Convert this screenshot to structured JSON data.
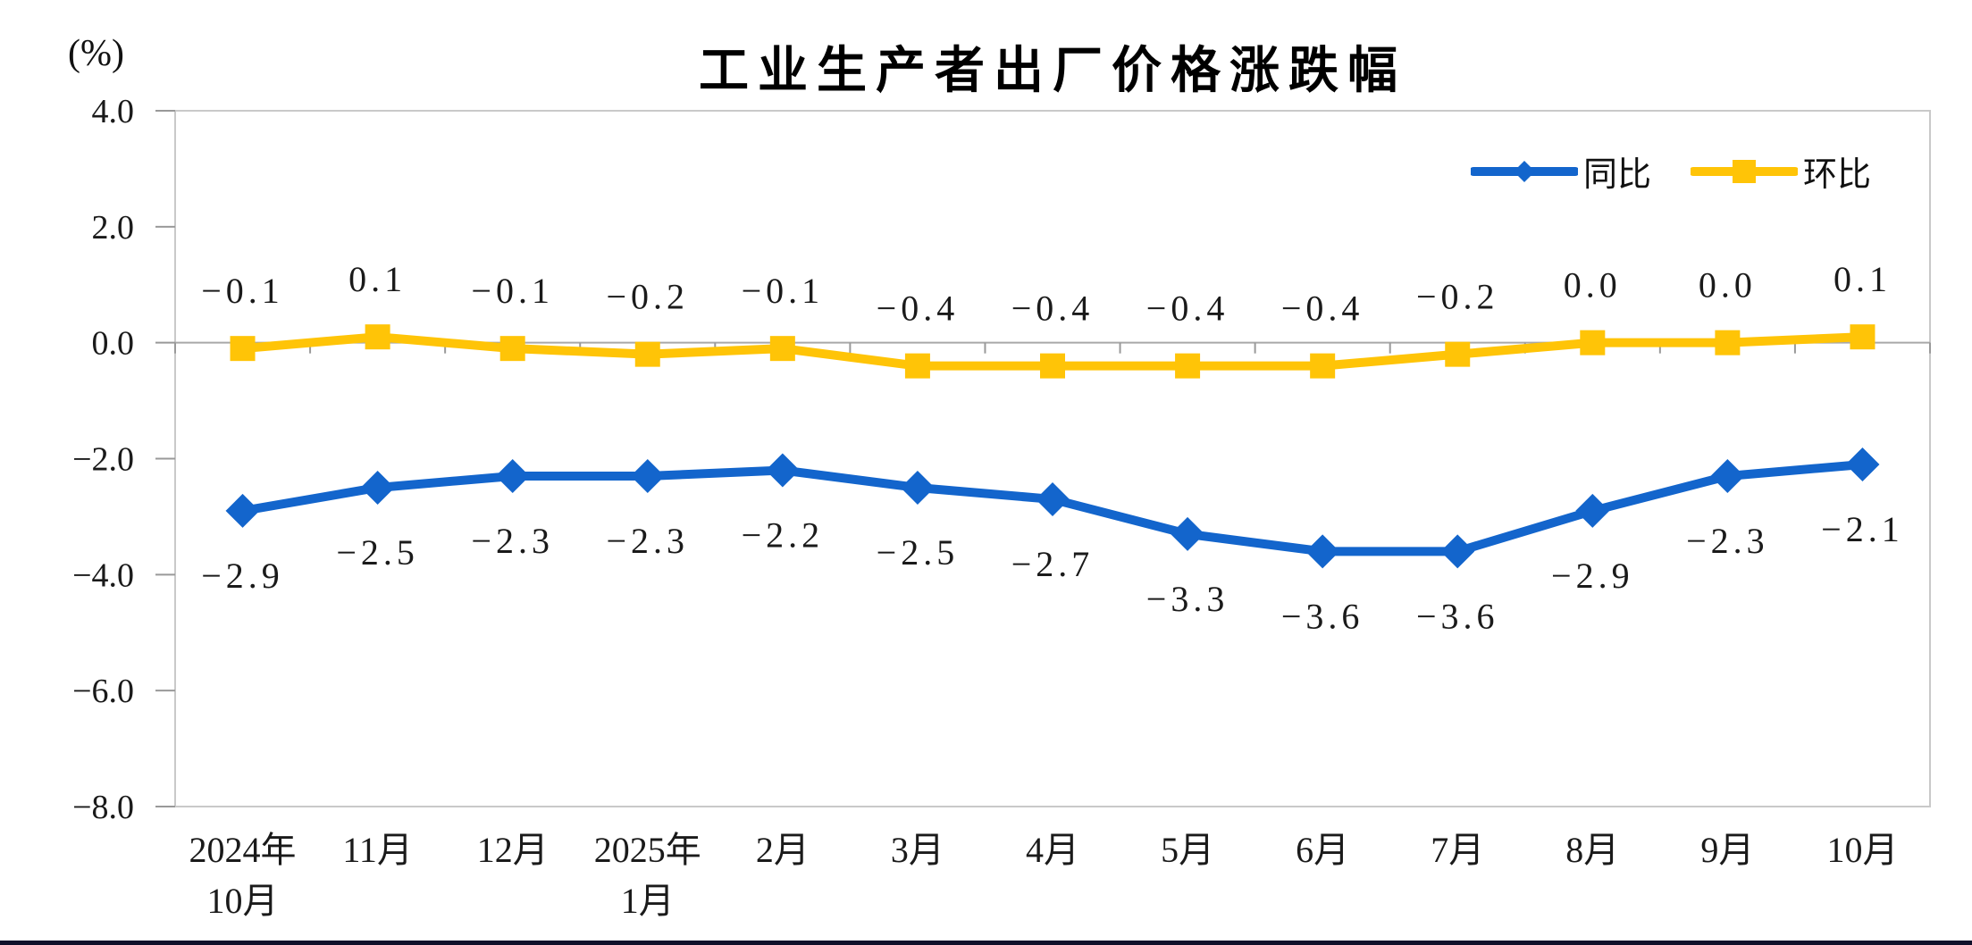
{
  "chart_data": {
    "type": "line",
    "title": "工业生产者出厂价格涨跌幅",
    "unit_label": "(%)",
    "categories": [
      [
        "2024年",
        "10月"
      ],
      [
        "11月"
      ],
      [
        "12月"
      ],
      [
        "2025年",
        "1月"
      ],
      [
        "2月"
      ],
      [
        "3月"
      ],
      [
        "4月"
      ],
      [
        "5月"
      ],
      [
        "6月"
      ],
      [
        "7月"
      ],
      [
        "8月"
      ],
      [
        "9月"
      ],
      [
        "10月"
      ]
    ],
    "y_ticks": [
      4.0,
      2.0,
      0.0,
      -2.0,
      -4.0,
      -6.0,
      -8.0
    ],
    "ylim": [
      -8.0,
      4.0
    ],
    "grid": false,
    "legend_position": "top-right",
    "series": [
      {
        "name": "同比",
        "color": "#1365CC",
        "marker": "diamond",
        "label_side": "below",
        "values": [
          -2.9,
          -2.5,
          -2.3,
          -2.3,
          -2.2,
          -2.5,
          -2.7,
          -3.3,
          -3.6,
          -3.6,
          -2.9,
          -2.3,
          -2.1
        ]
      },
      {
        "name": "环比",
        "color": "#FFC407",
        "marker": "square",
        "label_side": "above",
        "values": [
          -0.1,
          0.1,
          -0.1,
          -0.2,
          -0.1,
          -0.4,
          -0.4,
          -0.4,
          -0.4,
          -0.2,
          0.0,
          0.0,
          0.1
        ]
      }
    ],
    "axis_color": "#a8a8a8",
    "border_color": "#c9c9c9",
    "tick_color": "#999999",
    "label_color": "#1a1a1a"
  },
  "page": {
    "divider_color": "#10102a"
  }
}
